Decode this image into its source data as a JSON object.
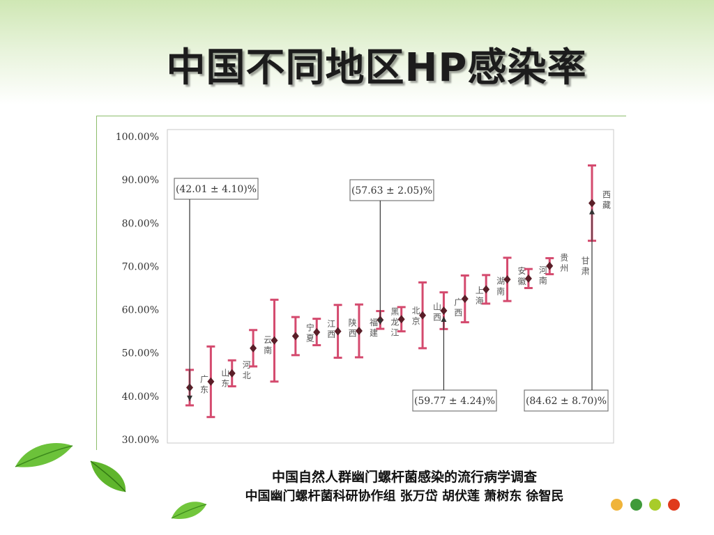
{
  "slide": {
    "title": "中国不同地区HP感染率",
    "caption_line1": "中国自然人群幽门螺杆菌感染的流行病学调查",
    "caption_line2": "中国幽门螺杆菌科研协作组  张万岱  胡伏莲  萧树东  徐智民",
    "dot_colors": [
      "#f0b43a",
      "#3f9a3a",
      "#a8cc2a",
      "#e03a1c"
    ]
  },
  "chart_data": {
    "type": "scatter",
    "error_bars": true,
    "ylim": [
      30,
      100
    ],
    "y_ticks": [
      "100.00%",
      "90.00%",
      "80.00%",
      "70.00%",
      "60.00%",
      "50.00%",
      "40.00%",
      "30.00%"
    ],
    "grid": false,
    "marker_color": "#5a1e28",
    "error_bar_color": "#d44a6e",
    "points": [
      {
        "region": "广东",
        "value": 42.01,
        "low": 37.9,
        "high": 46.1
      },
      {
        "region": "山东",
        "value": 43.4,
        "low": 35.2,
        "high": 51.5
      },
      {
        "region": "河北",
        "value": 45.3,
        "low": 42.3,
        "high": 48.3
      },
      {
        "region": "云南",
        "value": 51.1,
        "low": 46.9,
        "high": 55.3
      },
      {
        "region": "",
        "value": 52.9,
        "low": 43.4,
        "high": 62.3
      },
      {
        "region": "宁夏",
        "value": 53.9,
        "low": 49.5,
        "high": 58.3
      },
      {
        "region": "江西",
        "value": 54.8,
        "low": 51.8,
        "high": 57.9
      },
      {
        "region": "陕西",
        "value": 55.0,
        "low": 48.9,
        "high": 61.1
      },
      {
        "region": "福建",
        "value": 55.1,
        "low": 49.0,
        "high": 61.2
      },
      {
        "region": "黑龙江",
        "value": 57.63,
        "low": 55.58,
        "high": 59.68
      },
      {
        "region": "北京",
        "value": 57.8,
        "low": 55.0,
        "high": 60.6
      },
      {
        "region": "山西",
        "value": 58.7,
        "low": 51.1,
        "high": 66.3
      },
      {
        "region": "广西",
        "value": 59.77,
        "low": 55.53,
        "high": 64.01
      },
      {
        "region": "上海",
        "value": 62.5,
        "low": 57.1,
        "high": 67.9
      },
      {
        "region": "湖南",
        "value": 64.7,
        "low": 61.4,
        "high": 68.0
      },
      {
        "region": "安徽",
        "value": 67.0,
        "low": 62.0,
        "high": 72.0
      },
      {
        "region": "河南",
        "value": 67.2,
        "low": 65.0,
        "high": 69.4
      },
      {
        "region": "贵州",
        "value": 70.1,
        "low": 68.2,
        "high": 71.9
      },
      {
        "region": "甘肃",
        "value": "",
        "low": "",
        "high": ""
      },
      {
        "region": "西藏",
        "value": 84.62,
        "low": 75.92,
        "high": 93.32
      }
    ],
    "annotations": [
      {
        "text": "(42.01 ± 4.10)%",
        "point_index": 0
      },
      {
        "text": "(57.63 ± 2.05)%",
        "point_index": 9
      },
      {
        "text": "(59.77 ± 4.24)%",
        "point_index": 12
      },
      {
        "text": "(84.62 ± 8.70)%",
        "point_index": 19
      }
    ]
  }
}
